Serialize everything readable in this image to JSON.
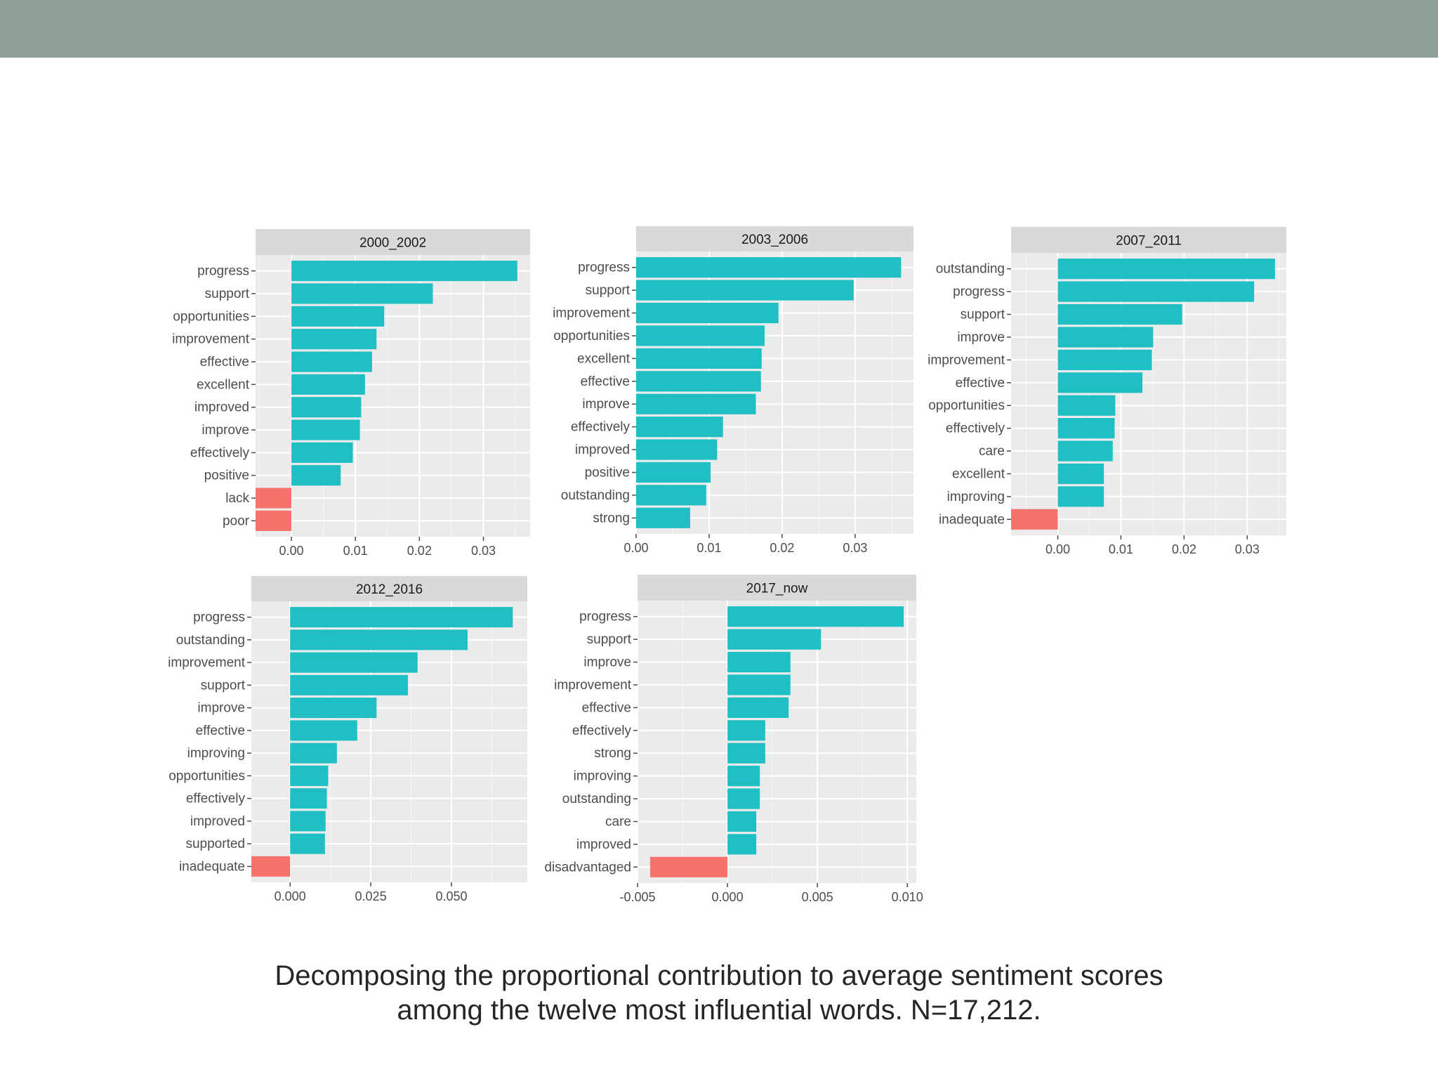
{
  "caption": {
    "line1": "Decomposing the proportional contribution to average sentiment scores",
    "line2": "among the twelve most influential words. N=17,212."
  },
  "colors": {
    "positive": "#1fbfc4",
    "negative": "#f5736b",
    "panel_background": "#ebebeb",
    "strip_background": "#d9d9d9",
    "header_bar": "#909f97"
  },
  "chart_data": [
    {
      "type": "bar",
      "orientation": "horizontal",
      "title": "2000_2002",
      "categories": [
        "progress",
        "support",
        "opportunities",
        "improvement",
        "effective",
        "excellent",
        "improved",
        "improve",
        "effectively",
        "positive",
        "lack",
        "poor"
      ],
      "values": [
        0.0353,
        0.0221,
        0.0145,
        0.0133,
        0.0126,
        0.0115,
        0.0109,
        0.0107,
        0.0096,
        0.0077,
        -0.0056,
        -0.0056
      ],
      "xlim": [
        -0.0056,
        0.0373
      ],
      "ticks": [
        0.0,
        0.01,
        0.02,
        0.03
      ],
      "tick_labels": [
        "0.00",
        "0.01",
        "0.02",
        "0.03"
      ]
    },
    {
      "type": "bar",
      "orientation": "horizontal",
      "title": "2003_2006",
      "categories": [
        "progress",
        "support",
        "improvement",
        "opportunities",
        "excellent",
        "effective",
        "improve",
        "effectively",
        "improved",
        "positive",
        "outstanding",
        "strong"
      ],
      "values": [
        0.0363,
        0.0298,
        0.0195,
        0.0176,
        0.0172,
        0.0171,
        0.0164,
        0.0119,
        0.0111,
        0.0102,
        0.0096,
        0.0074
      ],
      "xlim": [
        0.0,
        0.038
      ],
      "ticks": [
        0.0,
        0.01,
        0.02,
        0.03
      ],
      "tick_labels": [
        "0.00",
        "0.01",
        "0.02",
        "0.03"
      ]
    },
    {
      "type": "bar",
      "orientation": "horizontal",
      "title": "2007_2011",
      "categories": [
        "outstanding",
        "progress",
        "support",
        "improve",
        "improvement",
        "effective",
        "opportunities",
        "effectively",
        "care",
        "excellent",
        "improving",
        "inadequate"
      ],
      "values": [
        0.0344,
        0.0311,
        0.0197,
        0.0151,
        0.0149,
        0.0134,
        0.0091,
        0.009,
        0.0087,
        0.0073,
        0.0073,
        -0.0074
      ],
      "xlim": [
        -0.0074,
        0.0362
      ],
      "ticks": [
        0.0,
        0.01,
        0.02,
        0.03
      ],
      "tick_labels": [
        "0.00",
        "0.01",
        "0.02",
        "0.03"
      ]
    },
    {
      "type": "bar",
      "orientation": "horizontal",
      "title": "2012_2016",
      "categories": [
        "progress",
        "outstanding",
        "improvement",
        "support",
        "improve",
        "effective",
        "improving",
        "opportunities",
        "effectively",
        "improved",
        "supported",
        "inadequate"
      ],
      "values": [
        0.069,
        0.055,
        0.0395,
        0.0365,
        0.0268,
        0.0208,
        0.0145,
        0.0118,
        0.0114,
        0.011,
        0.0108,
        -0.012
      ],
      "xlim": [
        -0.012,
        0.0735
      ],
      "ticks": [
        0.0,
        0.025,
        0.05
      ],
      "tick_labels": [
        "0.000",
        "0.025",
        "0.050"
      ]
    },
    {
      "type": "bar",
      "orientation": "horizontal",
      "title": "2017_now",
      "categories": [
        "progress",
        "support",
        "improve",
        "improvement",
        "effective",
        "effectively",
        "strong",
        "improving",
        "outstanding",
        "care",
        "improved",
        "disadvantaged"
      ],
      "values": [
        0.0098,
        0.0052,
        0.0035,
        0.0035,
        0.0034,
        0.0021,
        0.0021,
        0.0018,
        0.0018,
        0.0016,
        0.0016,
        -0.0043
      ],
      "xlim": [
        -0.005,
        0.0105
      ],
      "ticks": [
        -0.005,
        0.0,
        0.005,
        0.01
      ],
      "tick_labels": [
        "-0.005",
        "0.000",
        "0.005",
        "0.010"
      ]
    }
  ]
}
